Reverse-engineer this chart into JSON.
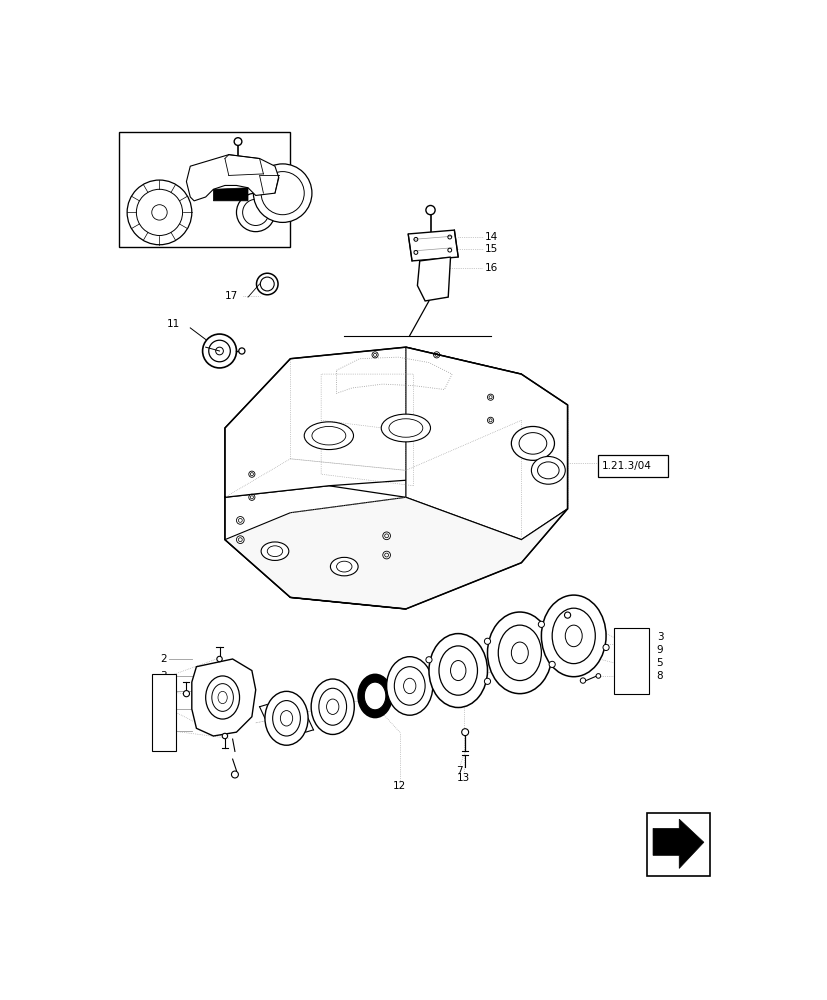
{
  "bg_color": "#ffffff",
  "lc": "#000000",
  "llc": "#999999",
  "fig_width": 8.28,
  "fig_height": 10.0,
  "ref_box_label": "1.21.3/04"
}
